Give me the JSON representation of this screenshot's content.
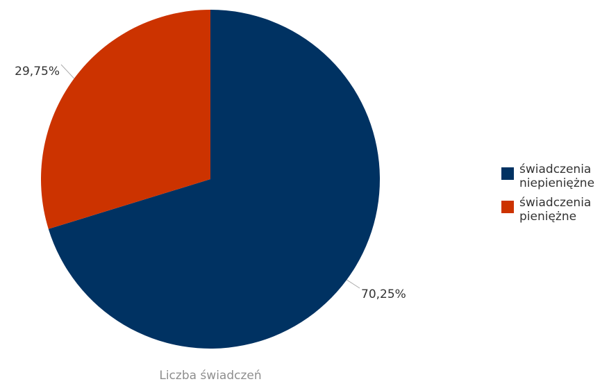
{
  "chart_data": {
    "type": "pie",
    "caption": "Liczba świadczeń",
    "slices": [
      {
        "label": "świadczenia niepieniężne",
        "legend_lines": [
          "świadczenia",
          "niepieniężne"
        ],
        "value": 70.25,
        "value_label": "70,25%",
        "color": "#003262"
      },
      {
        "label": "świadczenia pieniężne",
        "legend_lines": [
          "świadczenia",
          "pieniężne"
        ],
        "value": 29.75,
        "value_label": "29,75%",
        "color": "#cc3300"
      }
    ],
    "legend_position": "right",
    "start_angle": "12 o'clock",
    "direction": "clockwise"
  }
}
